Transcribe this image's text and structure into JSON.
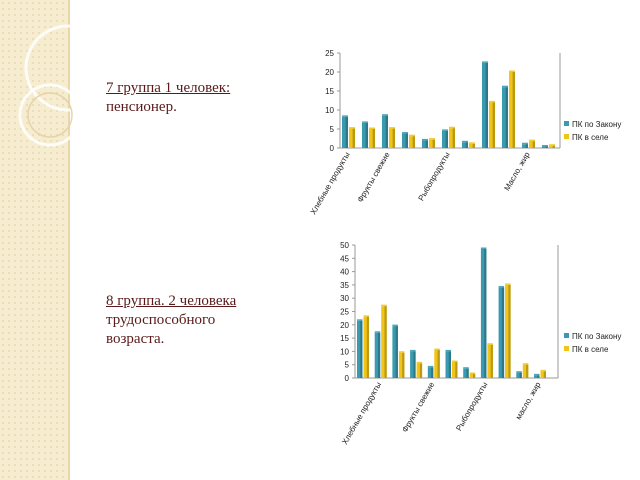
{
  "captions": [
    {
      "line1": "7 группа 1 человек:",
      "line2": "пенсионер."
    },
    {
      "line1": "8 группа. 2 человека",
      "line2": "трудоспособного",
      "line3": "возраста."
    }
  ],
  "colors": {
    "series1": "#3a9bb0",
    "series2": "#f0c418",
    "caption": "#5a1a1a",
    "sidebar": "#f6ecd0"
  },
  "chart_data": [
    {
      "type": "bar",
      "ylim": [
        0,
        25
      ],
      "yticks": [
        0,
        5,
        10,
        15,
        20,
        25
      ],
      "xticklabels": [
        "Хлебные продукты",
        "Фрукты свежие",
        "Рыбопродукты",
        "Масло, жир"
      ],
      "series": [
        {
          "name": "ПК по Закону",
          "values": [
            8.2,
            6.6,
            8.5,
            3.8,
            2.0,
            4.5,
            1.5,
            22.4,
            16.0,
            1.0,
            0.4
          ]
        },
        {
          "name": "ПК в селе",
          "values": [
            5.1,
            5.0,
            5.1,
            3.1,
            2.2,
            5.2,
            1.1,
            12.0,
            20.0,
            1.8,
            0.6
          ]
        }
      ],
      "legend": "right"
    },
    {
      "type": "bar",
      "ylim": [
        0,
        50
      ],
      "yticks": [
        0,
        5,
        10,
        15,
        20,
        25,
        30,
        35,
        40,
        45,
        50
      ],
      "xticklabels": [
        "Хлебные продукты",
        "Фрукты свежие",
        "Рыбопродукты",
        "масло, жир"
      ],
      "series": [
        {
          "name": "ПК по Закону",
          "values": [
            21.5,
            17.0,
            19.5,
            10.0,
            4.0,
            10.0,
            3.5,
            48.5,
            34.0,
            2.0,
            1.0
          ]
        },
        {
          "name": "ПК в селе",
          "values": [
            23.0,
            27.0,
            9.5,
            5.5,
            10.5,
            6.0,
            1.5,
            12.5,
            35.0,
            5.0,
            2.5
          ]
        }
      ],
      "legend": "right"
    }
  ]
}
